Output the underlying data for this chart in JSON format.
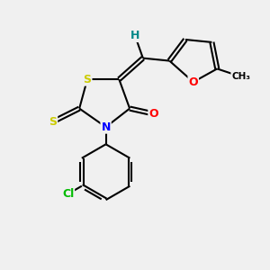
{
  "bg_color": "#f0f0f0",
  "atom_colors": {
    "S": "#cccc00",
    "N": "#0000ff",
    "O": "#ff0000",
    "Cl": "#00bb00",
    "H": "#008888",
    "C": "#000000"
  },
  "bond_color": "#000000",
  "bond_width": 1.5,
  "font_size_atom": 9,
  "figsize": [
    3.0,
    3.0
  ],
  "dpi": 100
}
